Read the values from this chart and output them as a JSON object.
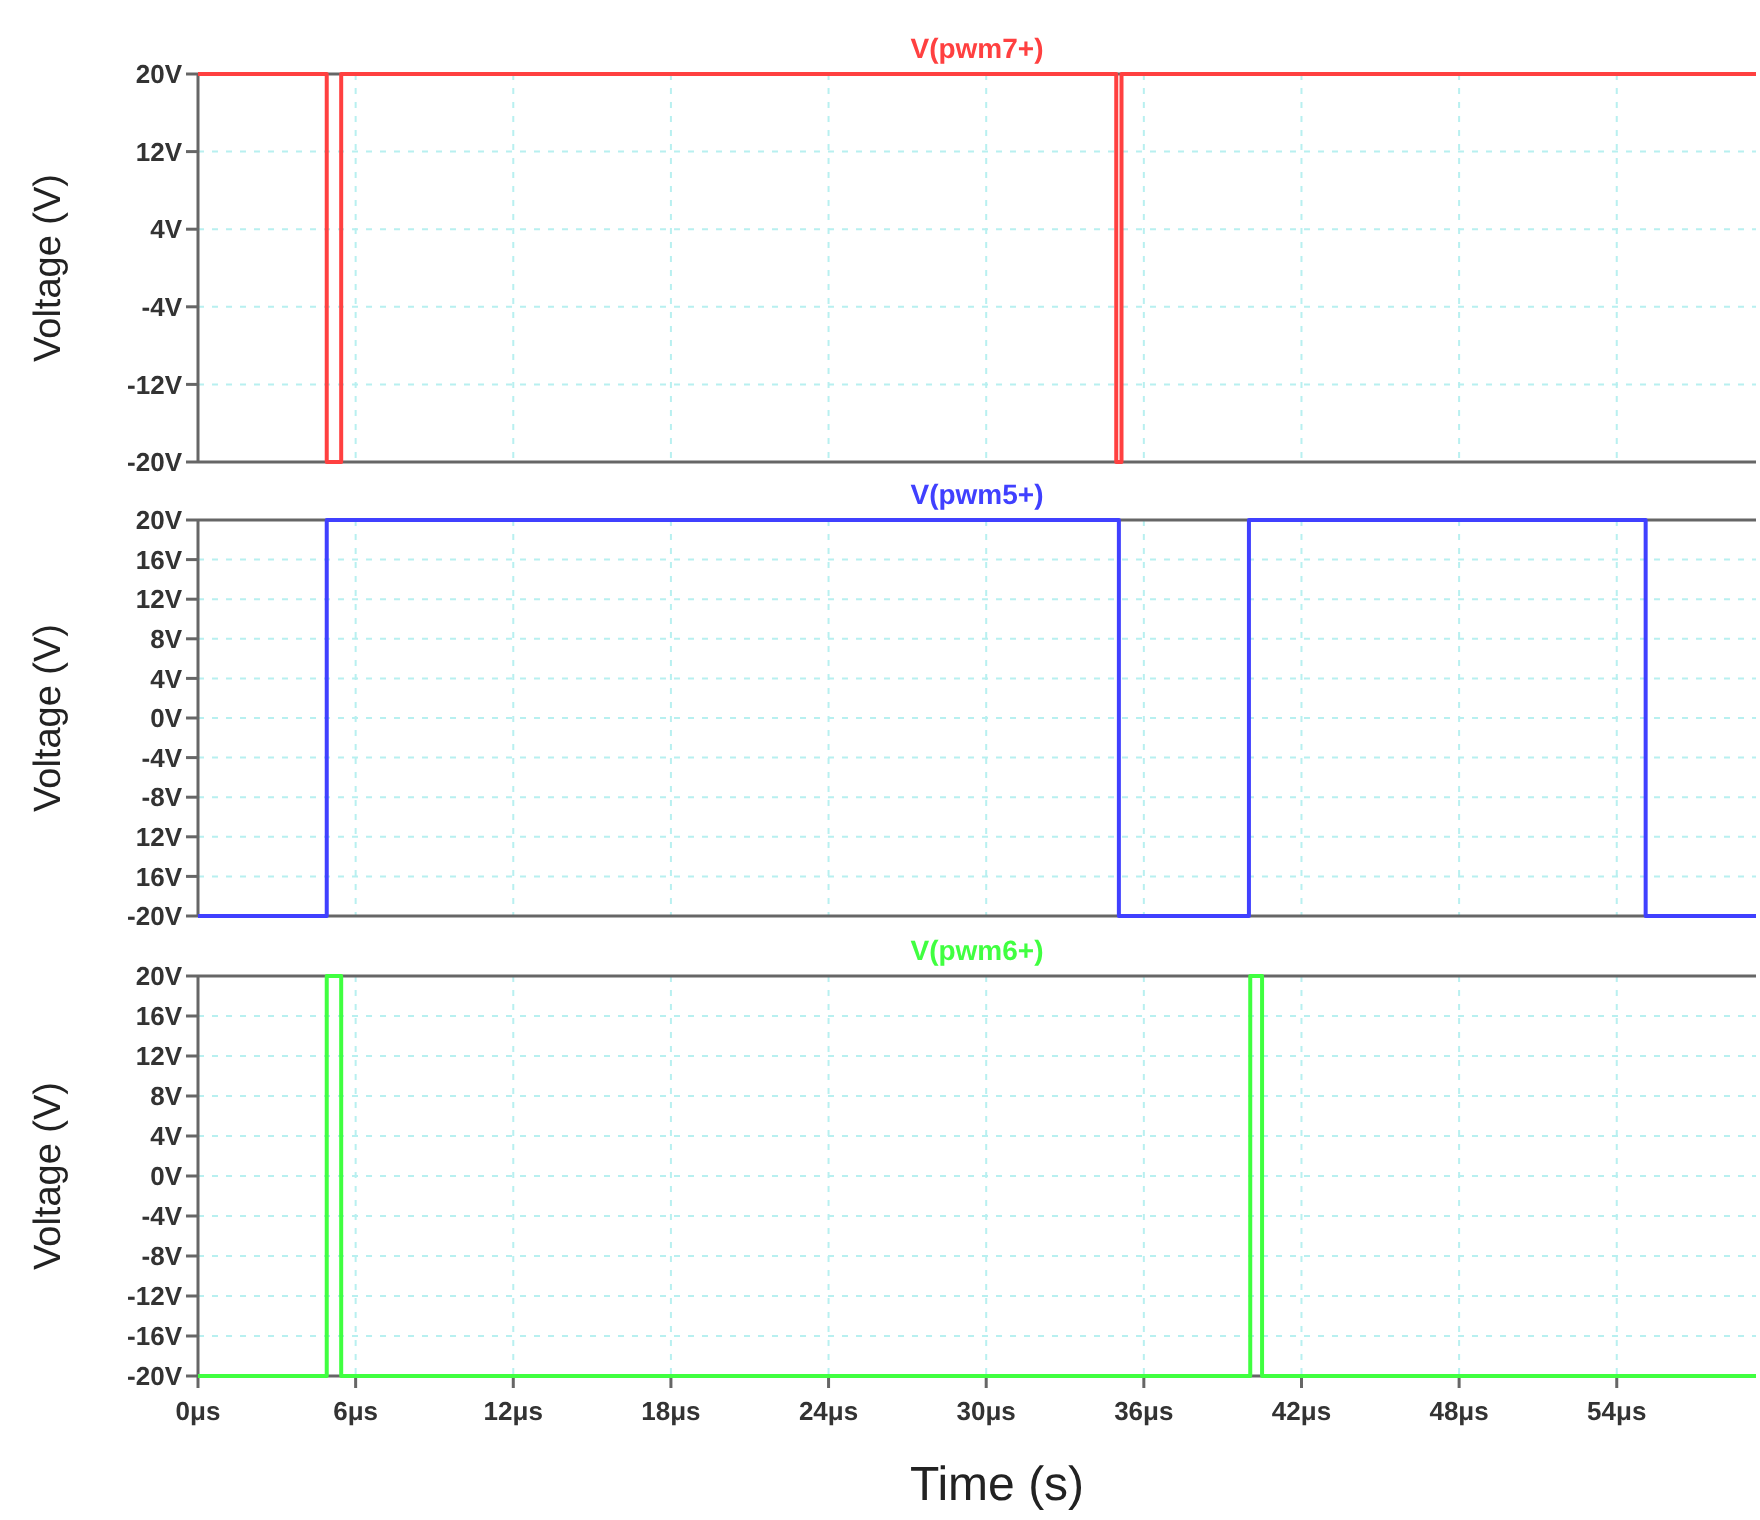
{
  "chart_data": [
    {
      "type": "line",
      "ylabel": "Voltage (V)",
      "xlim": [
        0,
        59.3
      ],
      "ylim": [
        -20,
        20
      ],
      "tick_labels": "y",
      "grid": true,
      "xticks": [
        0,
        6,
        12,
        18,
        24,
        30,
        36,
        42,
        48,
        54
      ],
      "yticks": [
        {
          "value": 20,
          "label": "20V"
        },
        {
          "value": 12,
          "label": "12V"
        },
        {
          "value": 4,
          "label": "4V"
        },
        {
          "value": -4,
          "label": "-4V"
        },
        {
          "value": -12,
          "label": "-12V"
        },
        {
          "value": -20,
          "label": "-20V"
        }
      ],
      "series": [
        {
          "name": "V(pwm7+)",
          "color": "#ff4040",
          "x": [
            0,
            4.9,
            4.9,
            5.45,
            5.45,
            34.95,
            34.95,
            35.15,
            35.15,
            59.3
          ],
          "values": [
            20,
            20,
            -20,
            -20,
            20,
            20,
            -20,
            -20,
            20,
            20
          ]
        }
      ]
    },
    {
      "type": "line",
      "ylabel": "Voltage (V)",
      "xlim": [
        0,
        59.3
      ],
      "ylim": [
        -20,
        20
      ],
      "tick_labels": "y",
      "grid": true,
      "xticks": [
        0,
        6,
        12,
        18,
        24,
        30,
        36,
        42,
        48,
        54
      ],
      "yticks": [
        {
          "value": 20,
          "label": "20V"
        },
        {
          "value": 16,
          "label": "16V"
        },
        {
          "value": 12,
          "label": "12V"
        },
        {
          "value": 8,
          "label": "8V"
        },
        {
          "value": 4,
          "label": "4V"
        },
        {
          "value": 0,
          "label": "0V"
        },
        {
          "value": -4,
          "label": "-4V"
        },
        {
          "value": -8,
          "label": "-8V"
        },
        {
          "value": -12,
          "label": "12V"
        },
        {
          "value": -16,
          "label": "16V"
        },
        {
          "value": -20,
          "label": "-20V"
        }
      ],
      "series": [
        {
          "name": "V(pwm5+)",
          "color": "#4040ff",
          "x": [
            0,
            4.9,
            4.9,
            35.05,
            35.05,
            40.0,
            40.0,
            55.1,
            55.1,
            59.3
          ],
          "values": [
            -20,
            -20,
            20,
            20,
            -20,
            -20,
            20,
            20,
            -20,
            -20
          ]
        }
      ]
    },
    {
      "type": "line",
      "ylabel": "Voltage (V)",
      "xlabel": "Time (s)",
      "xlim": [
        0,
        59.3
      ],
      "ylim": [
        -20,
        20
      ],
      "grid": true,
      "xticks": [
        {
          "value": 0,
          "label": "0μs"
        },
        {
          "value": 6,
          "label": "6μs"
        },
        {
          "value": 12,
          "label": "12μs"
        },
        {
          "value": 18,
          "label": "18μs"
        },
        {
          "value": 24,
          "label": "24μs"
        },
        {
          "value": 30,
          "label": "30μs"
        },
        {
          "value": 36,
          "label": "36μs"
        },
        {
          "value": 42,
          "label": "42μs"
        },
        {
          "value": 48,
          "label": "48μs"
        },
        {
          "value": 54,
          "label": "54μs"
        }
      ],
      "yticks": [
        {
          "value": 20,
          "label": "20V"
        },
        {
          "value": 16,
          "label": "16V"
        },
        {
          "value": 12,
          "label": "12V"
        },
        {
          "value": 8,
          "label": "8V"
        },
        {
          "value": 4,
          "label": "4V"
        },
        {
          "value": 0,
          "label": "0V"
        },
        {
          "value": -4,
          "label": "-4V"
        },
        {
          "value": -8,
          "label": "-8V"
        },
        {
          "value": -12,
          "label": "-12V"
        },
        {
          "value": -16,
          "label": "-16V"
        },
        {
          "value": -20,
          "label": "-20V"
        }
      ],
      "series": [
        {
          "name": "V(pwm6+)",
          "color": "#40ff40",
          "x": [
            0,
            4.9,
            4.9,
            5.45,
            5.45,
            40.05,
            40.05,
            40.5,
            40.5,
            59.3
          ],
          "values": [
            -20,
            -20,
            20,
            20,
            -20,
            -20,
            20,
            20,
            -20,
            -20
          ]
        }
      ]
    }
  ]
}
